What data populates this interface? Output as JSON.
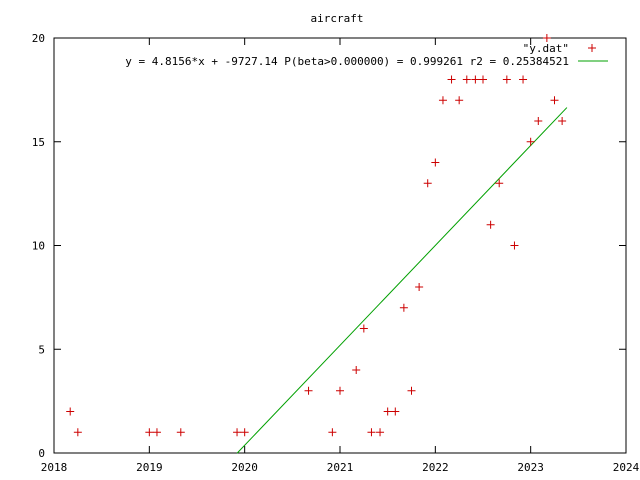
{
  "chart_data": {
    "type": "scatter",
    "title": "aircraft",
    "xlabel": "",
    "ylabel": "",
    "xlim": [
      2018,
      2024
    ],
    "ylim": [
      0,
      20
    ],
    "x_ticks": [
      "2018",
      "2019",
      "2020",
      "2021",
      "2022",
      "2023",
      "2024"
    ],
    "y_ticks": [
      "0",
      "5",
      "10",
      "15",
      "20"
    ],
    "grid": false,
    "legend_position": "top-right",
    "series": [
      {
        "name": "\"y.dat\"",
        "marker": "+",
        "color": "#cc0000",
        "points": [
          [
            2018.17,
            2
          ],
          [
            2018.25,
            1
          ],
          [
            2019.0,
            1
          ],
          [
            2019.08,
            1
          ],
          [
            2019.33,
            1
          ],
          [
            2019.92,
            1
          ],
          [
            2020.0,
            1
          ],
          [
            2020.67,
            3
          ],
          [
            2020.92,
            1
          ],
          [
            2021.0,
            3
          ],
          [
            2021.17,
            4
          ],
          [
            2021.25,
            6
          ],
          [
            2021.33,
            1
          ],
          [
            2021.42,
            1
          ],
          [
            2021.5,
            2
          ],
          [
            2021.58,
            2
          ],
          [
            2021.67,
            7
          ],
          [
            2021.75,
            3
          ],
          [
            2021.83,
            8
          ],
          [
            2021.92,
            13
          ],
          [
            2022.0,
            14
          ],
          [
            2022.08,
            17
          ],
          [
            2022.17,
            18
          ],
          [
            2022.25,
            17
          ],
          [
            2022.33,
            18
          ],
          [
            2022.42,
            18
          ],
          [
            2022.5,
            18
          ],
          [
            2022.58,
            11
          ],
          [
            2022.67,
            13
          ],
          [
            2022.75,
            18
          ],
          [
            2022.83,
            10
          ],
          [
            2022.92,
            18
          ],
          [
            2023.0,
            15
          ],
          [
            2023.08,
            16
          ],
          [
            2023.17,
            20
          ],
          [
            2023.25,
            17
          ],
          [
            2023.33,
            16
          ]
        ]
      },
      {
        "name": "y = 4.8156*x + -9727.14 P(beta>0.000000) = 0.999261 r2 = 0.25384521",
        "type": "line",
        "color": "#00a000",
        "slope": 4.8156,
        "intercept": -9727.14,
        "x_range": [
          2019.92,
          2023.38
        ]
      }
    ]
  }
}
